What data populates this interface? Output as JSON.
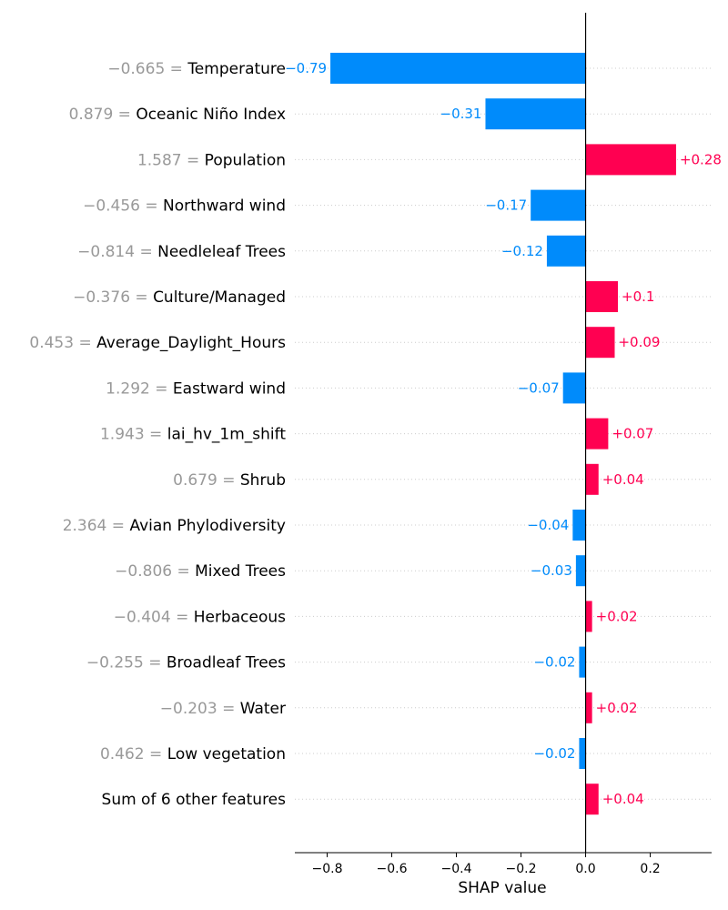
{
  "chart_data": {
    "type": "bar",
    "title": "",
    "xlabel": "SHAP value",
    "ylabel": "",
    "xlim": [
      -0.9,
      0.39
    ],
    "x_ticks": [
      -0.8,
      -0.6,
      -0.4,
      -0.2,
      0.0,
      0.2
    ],
    "x_tick_labels": [
      "−0.8",
      "−0.6",
      "−0.4",
      "−0.2",
      "0.0",
      "0.2"
    ],
    "grid": "horizontal dotted",
    "orientation": "horizontal",
    "colors": {
      "positive": "#ff0051",
      "negative": "#008bfb",
      "feature_value_text": "#999999"
    },
    "rows": [
      {
        "value_text": "−0.665 =",
        "feature": "Temperature",
        "shap": -0.79,
        "label": "−0.79"
      },
      {
        "value_text": "0.879 =",
        "feature": "Oceanic Niño Index",
        "shap": -0.31,
        "label": "−0.31"
      },
      {
        "value_text": "1.587 =",
        "feature": "Population",
        "shap": 0.28,
        "label": "+0.28"
      },
      {
        "value_text": "−0.456 =",
        "feature": "Northward wind",
        "shap": -0.17,
        "label": "−0.17"
      },
      {
        "value_text": "−0.814 =",
        "feature": "Needleleaf Trees",
        "shap": -0.12,
        "label": "−0.12"
      },
      {
        "value_text": "−0.376 =",
        "feature": "Culture/Managed",
        "shap": 0.1,
        "label": "+0.1"
      },
      {
        "value_text": "0.453 =",
        "feature": "Average_Daylight_Hours",
        "shap": 0.09,
        "label": "+0.09"
      },
      {
        "value_text": "1.292 =",
        "feature": "Eastward wind",
        "shap": -0.07,
        "label": "−0.07"
      },
      {
        "value_text": "1.943 =",
        "feature": "lai_hv_1m_shift",
        "shap": 0.07,
        "label": "+0.07"
      },
      {
        "value_text": "0.679 =",
        "feature": "Shrub",
        "shap": 0.04,
        "label": "+0.04"
      },
      {
        "value_text": "2.364 =",
        "feature": "Avian Phylodiversity",
        "shap": -0.04,
        "label": "−0.04"
      },
      {
        "value_text": "−0.806 =",
        "feature": "Mixed Trees",
        "shap": -0.03,
        "label": "−0.03"
      },
      {
        "value_text": "−0.404 =",
        "feature": "Herbaceous",
        "shap": 0.02,
        "label": "+0.02"
      },
      {
        "value_text": "−0.255 =",
        "feature": "Broadleaf Trees",
        "shap": -0.02,
        "label": "−0.02"
      },
      {
        "value_text": "−0.203 =",
        "feature": "Water",
        "shap": 0.02,
        "label": "+0.02"
      },
      {
        "value_text": "0.462 =",
        "feature": "Low vegetation",
        "shap": -0.02,
        "label": "−0.02"
      },
      {
        "value_text": "",
        "feature": "Sum of 6 other features",
        "shap": 0.04,
        "label": "+0.04"
      }
    ]
  }
}
